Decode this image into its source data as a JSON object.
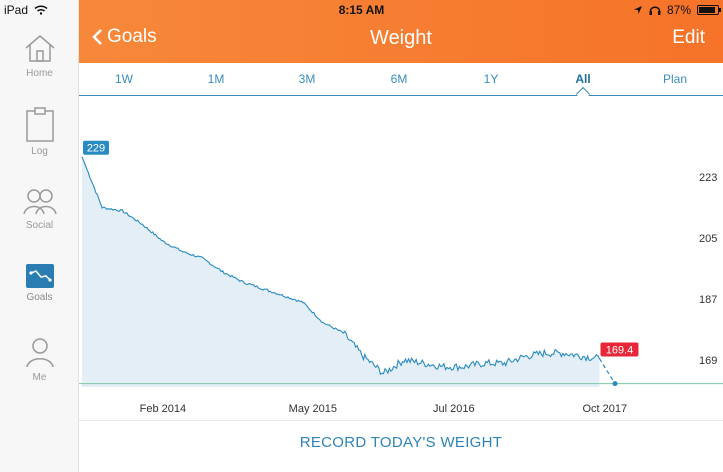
{
  "status": {
    "device": "iPad",
    "time": "8:15 AM",
    "battery": "87%",
    "battery_level": 0.87
  },
  "sidebar": {
    "items": [
      {
        "label": "Home",
        "icon": "home-icon"
      },
      {
        "label": "Log",
        "icon": "clipboard-icon"
      },
      {
        "label": "Social",
        "icon": "social-icon"
      },
      {
        "label": "Goals",
        "icon": "goals-icon",
        "active": true
      },
      {
        "label": "Me",
        "icon": "person-icon"
      }
    ]
  },
  "header": {
    "back_label": "Goals",
    "title": "Weight",
    "edit_label": "Edit",
    "color": "#f67329"
  },
  "tabs": [
    {
      "label": "1W"
    },
    {
      "label": "1M"
    },
    {
      "label": "3M"
    },
    {
      "label": "6M"
    },
    {
      "label": "1Y"
    },
    {
      "label": "All",
      "active": true
    },
    {
      "label": "Plan"
    }
  ],
  "chart_data": {
    "type": "area",
    "x_ticks": [
      "Feb 2014",
      "May 2015",
      "Jul 2016",
      "Oct 2017"
    ],
    "y_ticks": [
      223,
      205,
      187,
      169
    ],
    "ylim": [
      161,
      236
    ],
    "start_label": "229",
    "end_label": "169.4",
    "goal_line": 162,
    "series": [
      {
        "color": "#2a8bc2",
        "points": [
          [
            "2013-06-01",
            229
          ],
          [
            "2013-08-01",
            214
          ],
          [
            "2013-10-01",
            213
          ],
          [
            "2013-12-01",
            209
          ],
          [
            "2014-02-01",
            204
          ],
          [
            "2014-04-01",
            201
          ],
          [
            "2014-06-01",
            199
          ],
          [
            "2014-08-01",
            195
          ],
          [
            "2014-10-01",
            192
          ],
          [
            "2014-12-01",
            190
          ],
          [
            "2015-02-01",
            188
          ],
          [
            "2015-04-01",
            186
          ],
          [
            "2015-06-01",
            180
          ],
          [
            "2015-08-01",
            177
          ],
          [
            "2015-10-01",
            170
          ],
          [
            "2015-12-01",
            165
          ],
          [
            "2016-02-01",
            169
          ],
          [
            "2016-04-01",
            168
          ],
          [
            "2016-06-01",
            167
          ],
          [
            "2016-08-01",
            167
          ],
          [
            "2016-10-01",
            168
          ],
          [
            "2016-12-01",
            168
          ],
          [
            "2017-02-01",
            170
          ],
          [
            "2017-04-01",
            171
          ],
          [
            "2017-06-01",
            171
          ],
          [
            "2017-08-01",
            170
          ],
          [
            "2017-09-15",
            169.4
          ]
        ]
      }
    ],
    "projection": [
      [
        "2017-09-15",
        169.4
      ],
      [
        "2017-11-01",
        162
      ]
    ],
    "colors": {
      "line": "#2a8bc2",
      "fill": "#e3eef7",
      "goal": "#7cc7a6",
      "end_badge": "#e8263a",
      "start_badge": "#2a8bc2"
    }
  },
  "record": {
    "label": "RECORD TODAY'S WEIGHT"
  }
}
